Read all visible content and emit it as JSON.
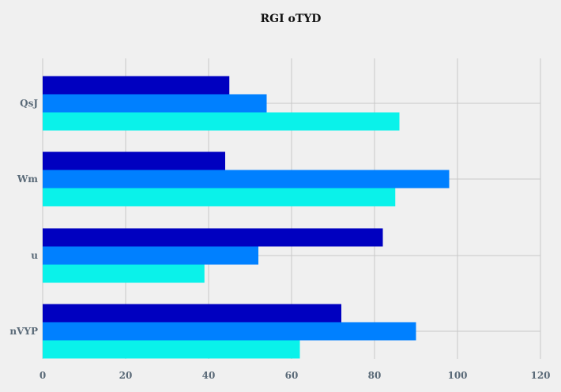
{
  "chart_data": {
    "type": "bar",
    "orientation": "horizontal",
    "title": "RGI oTYD",
    "xlabel": "",
    "ylabel": "",
    "categories": [
      "QsJ",
      "Wm",
      "u",
      "nVYP"
    ],
    "series": [
      {
        "color": "#0000c0",
        "values": [
          45,
          44,
          82,
          72
        ]
      },
      {
        "color": "#0080ff",
        "values": [
          54,
          98,
          52,
          90
        ]
      },
      {
        "color": "#0af2ea",
        "values": [
          86,
          85,
          39,
          62
        ]
      }
    ],
    "xlim": [
      0,
      120
    ],
    "xticks": [
      "0",
      "20",
      "40",
      "60",
      "80",
      "100",
      "120"
    ],
    "grid": true,
    "legend": "none"
  }
}
